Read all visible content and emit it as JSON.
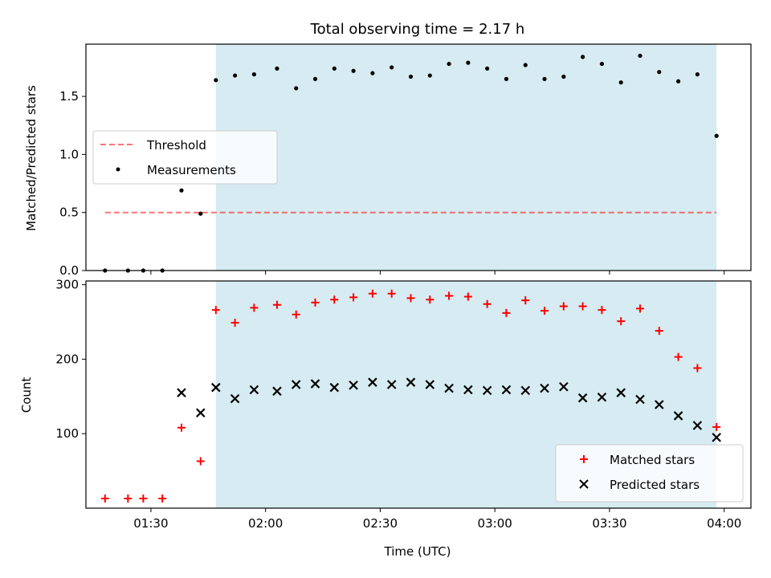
{
  "chart_data": [
    {
      "type": "scatter",
      "title": "Total observing time = 2.17 h",
      "xlabel": "",
      "ylabel": "Matched/Predicted stars",
      "xlim": [
        "01:13",
        "04:07"
      ],
      "ylim": [
        0,
        1.95
      ],
      "yticks": [
        0.0,
        0.5,
        1.0,
        1.5
      ],
      "ytick_labels": [
        "0.0",
        "0.5",
        "1.0",
        "1.5"
      ],
      "shaded_region": {
        "x": [
          "01:47",
          "03:58"
        ],
        "color": "#add8e6"
      },
      "threshold": {
        "name": "Threshold",
        "y": 0.5,
        "x": [
          "01:18",
          "03:58"
        ],
        "color": "#ff0000"
      },
      "series": [
        {
          "name": "Measurements",
          "marker": "dot",
          "color": "#000000",
          "x": [
            "01:18",
            "01:24",
            "01:28",
            "01:33",
            "01:38",
            "01:43",
            "01:47",
            "01:52",
            "01:57",
            "02:03",
            "02:08",
            "02:13",
            "02:18",
            "02:23",
            "02:28",
            "02:33",
            "02:38",
            "02:43",
            "02:48",
            "02:53",
            "02:58",
            "03:03",
            "03:08",
            "03:13",
            "03:18",
            "03:23",
            "03:28",
            "03:33",
            "03:38",
            "03:43",
            "03:48",
            "03:53",
            "03:58"
          ],
          "y": [
            0.0,
            0.0,
            0.0,
            0.0,
            0.69,
            0.49,
            1.64,
            1.68,
            1.69,
            1.74,
            1.57,
            1.65,
            1.74,
            1.72,
            1.7,
            1.75,
            1.67,
            1.68,
            1.78,
            1.79,
            1.74,
            1.65,
            1.77,
            1.65,
            1.67,
            1.84,
            1.78,
            1.62,
            1.85,
            1.71,
            1.63,
            1.69,
            1.16
          ]
        }
      ],
      "legend": {
        "placement": "center-left",
        "entries": [
          "Threshold",
          "Measurements"
        ]
      }
    },
    {
      "type": "scatter",
      "title": "",
      "xlabel": "Time (UTC)",
      "ylabel": "Count",
      "xlim": [
        "01:13",
        "04:07"
      ],
      "ylim": [
        0,
        305
      ],
      "xticks": [
        "01:30",
        "02:00",
        "02:30",
        "03:00",
        "03:30",
        "04:00"
      ],
      "yticks": [
        100,
        200,
        300
      ],
      "ytick_labels": [
        "100",
        "200",
        "300"
      ],
      "shaded_region": {
        "x": [
          "01:47",
          "03:58"
        ],
        "color": "#add8e6"
      },
      "series": [
        {
          "name": "Matched stars",
          "marker": "plus",
          "color": "#ff0000",
          "x": [
            "01:18",
            "01:24",
            "01:28",
            "01:33",
            "01:38",
            "01:43",
            "01:47",
            "01:52",
            "01:57",
            "02:03",
            "02:08",
            "02:13",
            "02:18",
            "02:23",
            "02:28",
            "02:33",
            "02:38",
            "02:43",
            "02:48",
            "02:53",
            "02:58",
            "03:03",
            "03:08",
            "03:13",
            "03:18",
            "03:23",
            "03:28",
            "03:33",
            "03:38",
            "03:43",
            "03:48",
            "03:53",
            "03:58"
          ],
          "y": [
            13,
            13,
            13,
            13,
            108,
            63,
            266,
            249,
            269,
            273,
            260,
            276,
            280,
            283,
            288,
            288,
            282,
            280,
            285,
            284,
            274,
            262,
            279,
            265,
            271,
            271,
            266,
            251,
            268,
            238,
            203,
            188,
            109
          ]
        },
        {
          "name": "Predicted stars",
          "marker": "x",
          "color": "#000000",
          "x": [
            "01:38",
            "01:43",
            "01:47",
            "01:52",
            "01:57",
            "02:03",
            "02:08",
            "02:13",
            "02:18",
            "02:23",
            "02:28",
            "02:33",
            "02:38",
            "02:43",
            "02:48",
            "02:53",
            "02:58",
            "03:03",
            "03:08",
            "03:13",
            "03:18",
            "03:23",
            "03:28",
            "03:33",
            "03:38",
            "03:43",
            "03:48",
            "03:53",
            "03:58"
          ],
          "y": [
            155,
            128,
            162,
            147,
            159,
            157,
            166,
            167,
            162,
            165,
            169,
            166,
            169,
            166,
            161,
            159,
            158,
            159,
            158,
            161,
            163,
            148,
            149,
            155,
            146,
            139,
            124,
            111,
            95
          ]
        }
      ],
      "legend": {
        "placement": "lower-right",
        "entries": [
          "Matched stars",
          "Predicted stars"
        ]
      }
    }
  ]
}
